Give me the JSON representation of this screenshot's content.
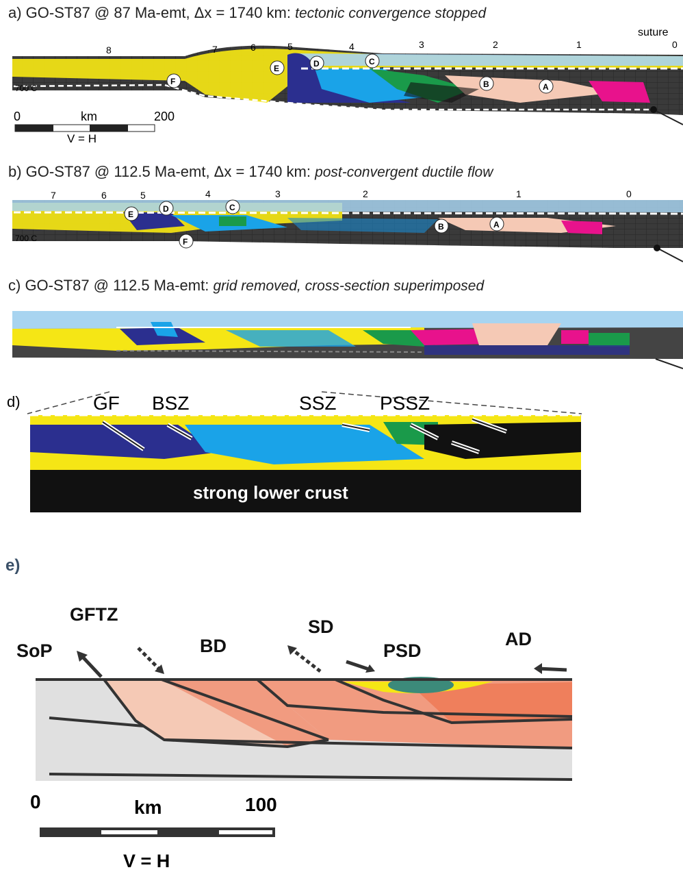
{
  "panel_a": {
    "prefix": "a) GO-ST87 @ 87 Ma-emt, Δx = 1740 km: ",
    "subtitle": "tectonic convergence stopped",
    "suture_label": "suture",
    "isotherm_label": "700 C",
    "grid_labels": [
      "8",
      "7",
      "6",
      "5",
      "4",
      "3",
      "2",
      "1",
      "0"
    ],
    "domain_labels": [
      "F",
      "E",
      "D",
      "C",
      "B",
      "A"
    ],
    "scale": {
      "start": "0",
      "unit": "km",
      "end": "200",
      "vh": "V = H"
    }
  },
  "panel_b": {
    "prefix": "b) GO-ST87 @ 112.5 Ma-emt, Δx = 1740 km: ",
    "subtitle": "post-convergent ductile flow",
    "isotherm_label": "700 C",
    "grid_labels": [
      "7",
      "6",
      "5",
      "4",
      "3",
      "2",
      "1",
      "0"
    ],
    "domain_labels": [
      "E",
      "D",
      "C",
      "F",
      "B",
      "A"
    ]
  },
  "panel_c": {
    "prefix": "c) GO-ST87 @ 112.5 Ma-emt: ",
    "subtitle": "grid removed, cross-section superimposed"
  },
  "panel_d": {
    "prefix": "d)",
    "zones": [
      "GF",
      "BSZ",
      "SSZ",
      "PSSZ"
    ],
    "base_label": "strong lower crust"
  },
  "panel_e": {
    "prefix": "e)",
    "labels": {
      "gftz": "GFTZ",
      "sop": "SoP",
      "bd": "BD",
      "sd": "SD",
      "psd": "PSD",
      "ad": "AD"
    },
    "scale": {
      "start": "0",
      "unit": "km",
      "end": "100",
      "vh": "V = H"
    }
  },
  "colors": {
    "yellow": "#f5e615",
    "light_blue": "#a8d4f0",
    "cyan": "#1aa3e8",
    "dark_blue": "#2b2f8f",
    "green": "#1a9a4a",
    "pink": "#e8128c",
    "light_pink": "#f5c9b5",
    "salmon": "#f19b80",
    "orange_salmon": "#ef7f5c",
    "grey": "#e0e0e0"
  }
}
